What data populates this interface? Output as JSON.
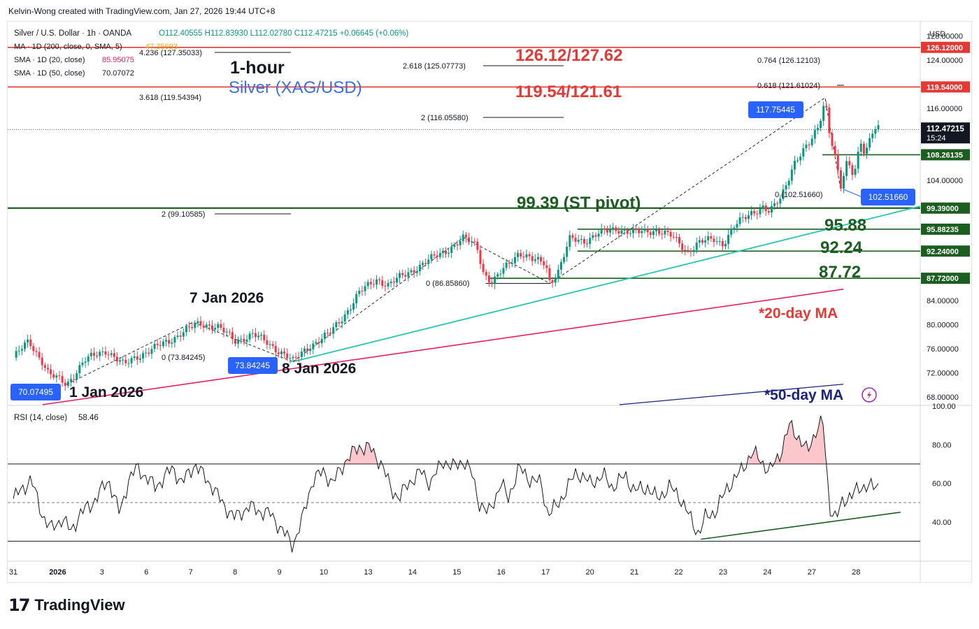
{
  "credit": "Kelvin-Wong created with TradingView.com, Jan 27, 2026 19:44 UTC+8",
  "logo_text": "TradingView",
  "chart_data": {
    "type": "line",
    "header": {
      "symbol": "Silver / U.S. Dollar · 1h · OANDA",
      "ohlc": "O112.40555  H112.83930  L112.02780  C112.47215  +0.06645 (+0.06%)",
      "indicators": [
        {
          "label": "MA · 1D (200, close, 0, SMA, 5)",
          "value": "47.35693",
          "color": "#f7a600"
        },
        {
          "label": "SMA · 1D (20, close)",
          "value": "85.95075",
          "color": "#e91e63"
        },
        {
          "label": "SMA · 1D (50, close)",
          "value": "70.07072",
          "color": "#131722"
        }
      ]
    },
    "title_lines": [
      "1-hour",
      "Silver (XAG/USD)"
    ],
    "currency": "USD",
    "y_axis": {
      "ylim": [
        66.7,
        129.0
      ],
      "ticks": [
        "68.00000",
        "72.00000",
        "76.00000",
        "80.00000",
        "84.00000",
        "104.00000",
        "116.00000",
        "124.00000",
        "128.00000"
      ]
    },
    "x_axis": {
      "ticks": [
        {
          "label": "31",
          "i": 0
        },
        {
          "label": "2026",
          "i": 2
        },
        {
          "label": "3",
          "i": 4
        },
        {
          "label": "6",
          "i": 6
        },
        {
          "label": "7",
          "i": 8
        },
        {
          "label": "8",
          "i": 10
        },
        {
          "label": "9",
          "i": 12
        },
        {
          "label": "10",
          "i": 14
        },
        {
          "label": "13",
          "i": 16
        },
        {
          "label": "14",
          "i": 18
        },
        {
          "label": "15",
          "i": 20
        },
        {
          "label": "16",
          "i": 22
        },
        {
          "label": "17",
          "i": 24
        },
        {
          "label": "20",
          "i": 26
        },
        {
          "label": "21",
          "i": 28
        },
        {
          "label": "22",
          "i": 30
        },
        {
          "label": "23",
          "i": 32
        },
        {
          "label": "24",
          "i": 34
        },
        {
          "label": "27",
          "i": 36
        },
        {
          "label": "28",
          "i": 38
        }
      ]
    },
    "price_path": [
      [
        0,
        74.5
      ],
      [
        0.7,
        77.2
      ],
      [
        1.3,
        74.0
      ],
      [
        1.6,
        71.8
      ],
      [
        2.4,
        70.07
      ],
      [
        3.2,
        74.0
      ],
      [
        4.2,
        75.8
      ],
      [
        5.0,
        73.2
      ],
      [
        5.5,
        74.6
      ],
      [
        6.3,
        76.0
      ],
      [
        7.0,
        77.2
      ],
      [
        7.6,
        78.8
      ],
      [
        8.4,
        80.1
      ],
      [
        9.2,
        79.8
      ],
      [
        10.0,
        77.2
      ],
      [
        10.8,
        78.5
      ],
      [
        11.6,
        76.5
      ],
      [
        12.3,
        75.0
      ],
      [
        12.6,
        73.84
      ],
      [
        13.4,
        76.6
      ],
      [
        14.3,
        78.6
      ],
      [
        15.0,
        82.0
      ],
      [
        15.6,
        85.3
      ],
      [
        16.4,
        87.6
      ],
      [
        16.9,
        86.6
      ],
      [
        17.6,
        88.2
      ],
      [
        18.6,
        90.4
      ],
      [
        19.5,
        92.3
      ],
      [
        20.3,
        94.3
      ],
      [
        20.9,
        93.2
      ],
      [
        21.2,
        88.7
      ],
      [
        21.6,
        86.9
      ],
      [
        22.2,
        89.6
      ],
      [
        22.8,
        92.1
      ],
      [
        23.4,
        90.7
      ],
      [
        24.0,
        90.3
      ],
      [
        24.2,
        87.0
      ],
      [
        24.6,
        89.1
      ],
      [
        25.1,
        94.2
      ],
      [
        25.8,
        94.0
      ],
      [
        26.3,
        95.0
      ],
      [
        27.2,
        96.0
      ],
      [
        28.0,
        95.2
      ],
      [
        29.0,
        95.8
      ],
      [
        29.7,
        94.6
      ],
      [
        30.4,
        92.2
      ],
      [
        30.9,
        93.6
      ],
      [
        31.6,
        94.2
      ],
      [
        32.0,
        93.5
      ],
      [
        32.5,
        96.3
      ],
      [
        33.3,
        98.7
      ],
      [
        33.8,
        99.6
      ],
      [
        34.1,
        98.6
      ],
      [
        34.6,
        101.0
      ],
      [
        35.2,
        107.0
      ],
      [
        35.9,
        110.0
      ],
      [
        36.3,
        113.0
      ],
      [
        36.6,
        117.75
      ],
      [
        36.8,
        112.0
      ],
      [
        37.0,
        109.0
      ],
      [
        37.3,
        102.52
      ],
      [
        37.6,
        107.0
      ],
      [
        37.9,
        105.0
      ],
      [
        38.2,
        110.8
      ],
      [
        38.4,
        108.5
      ],
      [
        38.8,
        112.4
      ],
      [
        39.0,
        112.47
      ]
    ],
    "rsi": {
      "label": "RSI (14, close)",
      "value": "58.46",
      "ylim": [
        20,
        100
      ],
      "ticks": [
        "40.00",
        "60.00",
        "80.00",
        "100.00"
      ],
      "levels": [
        30,
        50,
        70
      ],
      "points": [
        [
          0,
          52
        ],
        [
          0.8,
          62
        ],
        [
          1.3,
          44
        ],
        [
          1.7,
          36
        ],
        [
          2.2,
          42
        ],
        [
          2.6,
          35
        ],
        [
          3.0,
          44
        ],
        [
          3.6,
          50
        ],
        [
          4.3,
          62
        ],
        [
          4.8,
          44
        ],
        [
          5.2,
          62
        ],
        [
          5.6,
          68
        ],
        [
          6.4,
          58
        ],
        [
          7.2,
          68
        ],
        [
          7.6,
          60
        ],
        [
          8.2,
          70
        ],
        [
          8.5,
          65
        ],
        [
          9.0,
          58
        ],
        [
          9.4,
          50
        ],
        [
          10.0,
          42
        ],
        [
          10.6,
          48
        ],
        [
          11.0,
          46
        ],
        [
          11.6,
          44
        ],
        [
          12.1,
          36
        ],
        [
          12.6,
          28
        ],
        [
          13.0,
          40
        ],
        [
          13.5,
          62
        ],
        [
          14.0,
          66
        ],
        [
          14.4,
          60
        ],
        [
          15.0,
          72
        ],
        [
          15.6,
          79
        ],
        [
          16.1,
          78
        ],
        [
          16.6,
          70
        ],
        [
          17.0,
          58
        ],
        [
          17.4,
          52
        ],
        [
          17.8,
          60
        ],
        [
          18.4,
          66
        ],
        [
          18.8,
          60
        ],
        [
          19.4,
          72
        ],
        [
          19.8,
          68
        ],
        [
          20.3,
          72
        ],
        [
          20.7,
          64
        ],
        [
          21.0,
          50
        ],
        [
          21.4,
          44
        ],
        [
          22.0,
          60
        ],
        [
          22.3,
          52
        ],
        [
          22.8,
          68
        ],
        [
          23.3,
          62
        ],
        [
          23.8,
          60
        ],
        [
          24.1,
          44
        ],
        [
          24.5,
          48
        ],
        [
          25.0,
          58
        ],
        [
          25.4,
          66
        ],
        [
          26.0,
          60
        ],
        [
          26.6,
          64
        ],
        [
          27.0,
          58
        ],
        [
          27.6,
          64
        ],
        [
          28.0,
          56
        ],
        [
          28.6,
          58
        ],
        [
          29.0,
          52
        ],
        [
          29.6,
          58
        ],
        [
          30.0,
          54
        ],
        [
          30.6,
          40
        ],
        [
          30.9,
          34
        ],
        [
          31.2,
          42
        ],
        [
          31.7,
          46
        ],
        [
          32.2,
          58
        ],
        [
          32.8,
          66
        ],
        [
          33.3,
          76
        ],
        [
          33.7,
          72
        ],
        [
          34.1,
          66
        ],
        [
          34.6,
          76
        ],
        [
          35.0,
          90
        ],
        [
          35.4,
          84
        ],
        [
          35.8,
          76
        ],
        [
          36.2,
          88
        ],
        [
          36.5,
          92
        ],
        [
          36.8,
          48
        ],
        [
          37.1,
          42
        ],
        [
          37.4,
          50
        ],
        [
          37.7,
          54
        ],
        [
          38.1,
          56
        ],
        [
          38.5,
          60
        ],
        [
          38.8,
          57
        ],
        [
          39.0,
          58
        ]
      ],
      "divergence_line": [
        [
          31.0,
          31.0
        ],
        [
          40.0,
          45.0
        ]
      ]
    },
    "annotations": {
      "resistance_1": "126.12/127.62",
      "resistance_2": "119.54/121.61",
      "pivot": "99.39 (ST pivot)",
      "supports": [
        "95.88",
        "92.24",
        "87.72"
      ],
      "ma20": "*20-day MA",
      "ma50": "*50-day MA",
      "dates": [
        "7 Jan 2026",
        "8 Jan 2026",
        "1 Jan 2026"
      ]
    },
    "price_tags": {
      "last": "112.47215",
      "countdown": "15:24",
      "levels": [
        {
          "text": "126.12000",
          "value": 126.12,
          "color": "#e53935"
        },
        {
          "text": "119.54000",
          "value": 119.54,
          "color": "#e53935"
        },
        {
          "text": "108.26135",
          "value": 108.26135,
          "color": "#1b5e20"
        },
        {
          "text": "99.39000",
          "value": 99.39,
          "color": "#1b5e20"
        },
        {
          "text": "95.88235",
          "value": 95.88235,
          "color": "#1b5e20"
        },
        {
          "text": "92.24000",
          "value": 92.24,
          "color": "#1b5e20"
        },
        {
          "text": "87.72000",
          "value": 87.72,
          "color": "#1b5e20"
        }
      ]
    },
    "callouts": {
      "high": "117.75445",
      "low": "102.51660",
      "low_jan8": "73.84245",
      "low_jan1": "70.07495"
    },
    "fib": [
      {
        "text": "4.236 (127.35033)"
      },
      {
        "text": "3.618 (119.54394)"
      },
      {
        "text": "2.618 (125.07773)"
      },
      {
        "text": "2 (116.05580)"
      },
      {
        "text": "2 (99.10585)"
      },
      {
        "text": "0 (73.84245)"
      },
      {
        "text": "0 (86.85860)"
      },
      {
        "text": "0.764 (126.12103)"
      },
      {
        "text": "0.618 (121.61024)"
      },
      {
        "text": "0 (102.51660)"
      }
    ],
    "colors": {
      "up": "#089981",
      "down": "#f23645",
      "resistance": "#e53935",
      "support": "#1b5e20",
      "trend": "#26c6b0",
      "ma20": "#e91e63",
      "ma50": "#1a237e",
      "title": "#3a6ee8",
      "tag_blue": "#2962ff"
    }
  }
}
